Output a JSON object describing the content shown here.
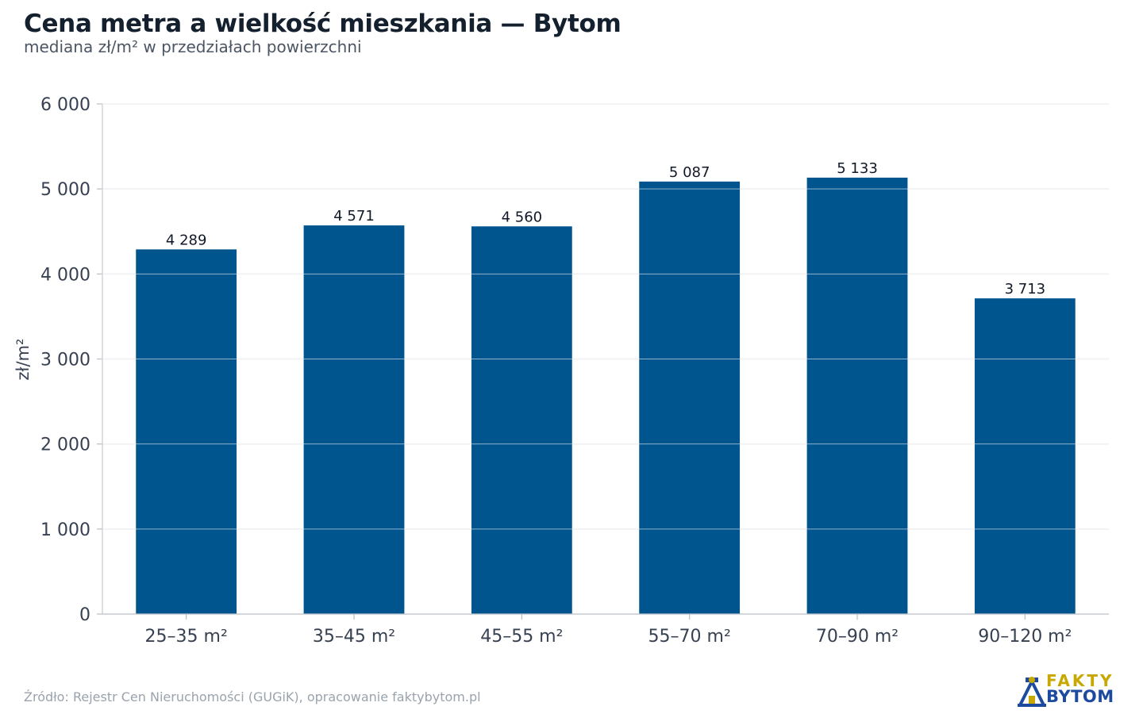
{
  "header": {
    "title": "Cena metra a wielkość mieszkania — Bytom",
    "subtitle": "mediana zł/m² w przedziałach powierzchni"
  },
  "chart_data": {
    "type": "bar",
    "categories": [
      "25–35 m²",
      "35–45 m²",
      "45–55 m²",
      "55–70 m²",
      "70–90 m²",
      "90–120 m²"
    ],
    "values": [
      4289,
      4571,
      4560,
      5087,
      5133,
      3713
    ],
    "value_labels": [
      "4 289",
      "4 571",
      "4 560",
      "5 087",
      "5 133",
      "3 713"
    ],
    "ylabel": "zł/m²",
    "xlabel": "",
    "ylim": [
      0,
      6000
    ],
    "yticks": [
      0,
      1000,
      2000,
      3000,
      4000,
      5000,
      6000
    ],
    "ytick_labels": [
      "0",
      "1 000",
      "2 000",
      "3 000",
      "4 000",
      "5 000",
      "6 000"
    ],
    "grid": true,
    "bar_color": "#00558e"
  },
  "footer": {
    "source": "Źródło: Rejestr Cen Nieruchomości (GUGiK), opracowanie faktybytom.pl"
  },
  "logo": {
    "line1": "FAKTY",
    "line2": "BYTOM",
    "icon": "mine-shaft-icon",
    "color_top": "#c8a800",
    "color_bottom": "#1c4a9e"
  }
}
